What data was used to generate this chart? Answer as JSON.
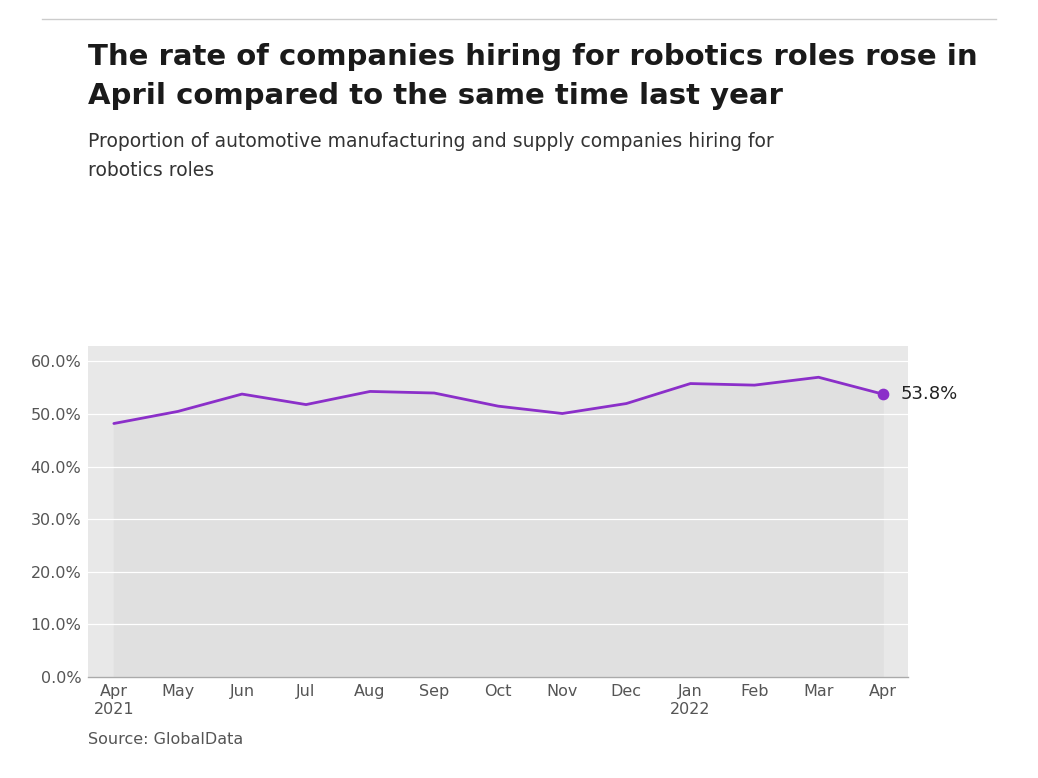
{
  "title_line1": "The rate of companies hiring for robotics roles rose in",
  "title_line2": "April compared to the same time last year",
  "subtitle_line1": "Proportion of automotive manufacturing and supply companies hiring for",
  "subtitle_line2": "robotics roles",
  "source": "Source: GlobalData",
  "line_color": "#8B2FC9",
  "fill_color": "#E0E0E0",
  "background_color": "#E8E8E8",
  "outer_background": "#FFFFFF",
  "grid_color": "#FFFFFF",
  "x_labels": [
    "Apr\n2021",
    "May",
    "Jun",
    "Jul",
    "Aug",
    "Sep",
    "Oct",
    "Nov",
    "Dec",
    "Jan\n2022",
    "Feb",
    "Mar",
    "Apr"
  ],
  "y_values": [
    48.2,
    50.5,
    53.8,
    51.8,
    54.3,
    54.0,
    51.5,
    50.1,
    52.0,
    55.8,
    55.5,
    57.0,
    53.8
  ],
  "ylim": [
    0,
    63
  ],
  "yticks": [
    0,
    10,
    20,
    30,
    40,
    50,
    60
  ],
  "ytick_labels": [
    "0.0%",
    "10.0%",
    "20.0%",
    "30.0%",
    "40.0%",
    "50.0%",
    "60.0%"
  ],
  "last_label": "53.8%",
  "title_fontsize": 21,
  "subtitle_fontsize": 13.5,
  "tick_fontsize": 11.5,
  "source_fontsize": 11.5,
  "annotation_fontsize": 13
}
